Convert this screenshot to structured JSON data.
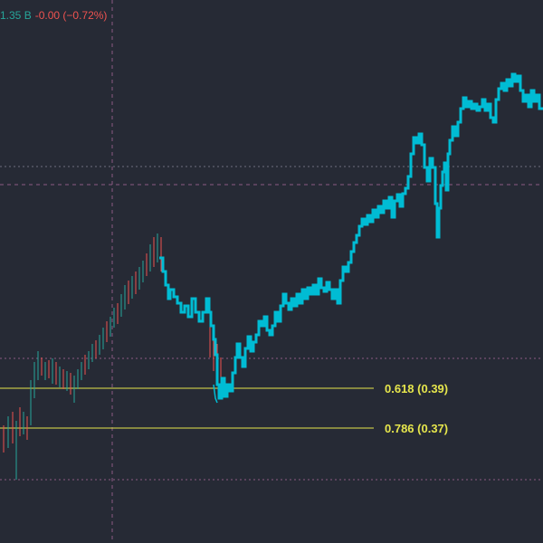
{
  "legend": {
    "volume_text": "1.35 B",
    "change_text": "-0.00 (−0.72%)"
  },
  "colors": {
    "background": "#262a35",
    "price_series": "#00bcd4",
    "candle_up": "#26a69a",
    "candle_down": "#ef5350",
    "fib_line": "#e6e64c",
    "grid_dotted": "#8c5a82",
    "crosshair": "#8c5a82",
    "volume_text": "#26a69a",
    "change_text": "#ef5350"
  },
  "fib_levels": [
    {
      "label": "0.618 (0.39)",
      "ratio": 0.618,
      "price": 0.39
    },
    {
      "label": "0.786 (0.37)",
      "ratio": 0.786,
      "price": 0.37
    }
  ]
}
